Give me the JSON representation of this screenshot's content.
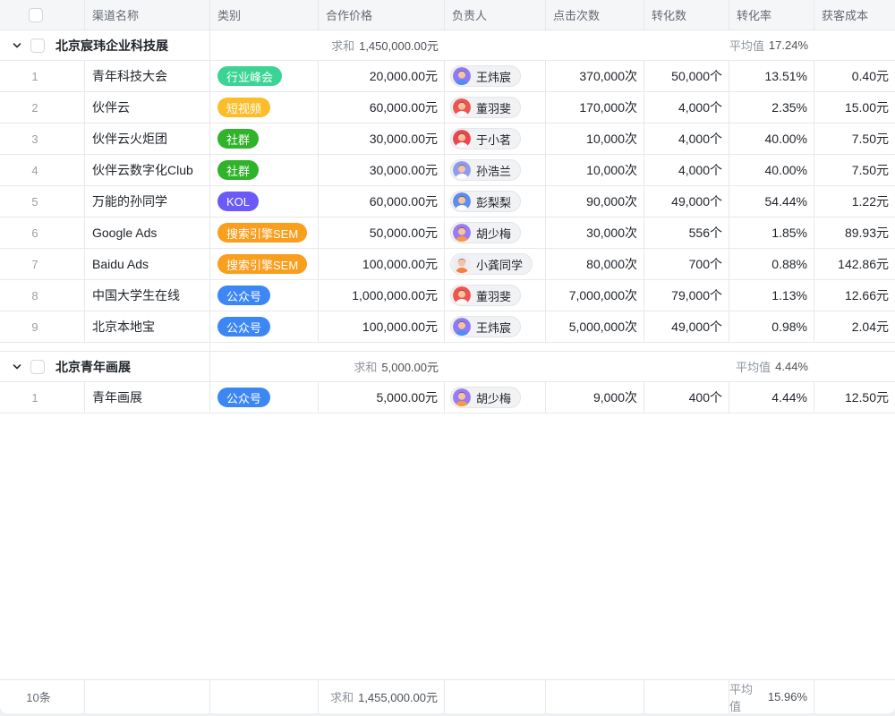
{
  "columns": {
    "name": "渠道名称",
    "category": "类别",
    "price": "合作价格",
    "owner": "负责人",
    "clicks": "点击次数",
    "conversions": "转化数",
    "rate": "转化率",
    "cost": "获客成本"
  },
  "badge_colors": {
    "行业峰会": "#3CD495",
    "短视频": "#FBBD2B",
    "社群": "#2FB32B",
    "KOL": "#6A5AF9",
    "搜索引擎SEM": "#FA9E1E",
    "公众号": "#3D87F5"
  },
  "groups": [
    {
      "title": "北京宸玮企业科技展",
      "sum_label": "求和",
      "sum_value": "1,450,000.00元",
      "avg_label": "平均值",
      "avg_value": "17.24%",
      "rows": [
        {
          "index": "1",
          "name": "青年科技大会",
          "category": "行业峰会",
          "price": "20,000.00元",
          "owner": "王炜宸",
          "avatar_bg": "#8E7BF3",
          "shirt": "#4D8DF6",
          "clicks": "370,000次",
          "conversions": "50,000个",
          "rate": "13.51%",
          "cost": "0.40元"
        },
        {
          "index": "2",
          "name": "伙伴云",
          "category": "短视频",
          "price": "60,000.00元",
          "owner": "董羽斐",
          "avatar_bg": "#F0544F",
          "shirt": "#FDFDFD",
          "clicks": "170,000次",
          "conversions": "4,000个",
          "rate": "2.35%",
          "cost": "15.00元"
        },
        {
          "index": "3",
          "name": "伙伴云火炬团",
          "category": "社群",
          "price": "30,000.00元",
          "owner": "于小茗",
          "avatar_bg": "#E8484E",
          "shirt": "#FDFDFD",
          "clicks": "10,000次",
          "conversions": "4,000个",
          "rate": "40.00%",
          "cost": "7.50元"
        },
        {
          "index": "4",
          "name": "伙伴云数字化Club",
          "category": "社群",
          "price": "30,000.00元",
          "owner": "孙浩兰",
          "avatar_bg": "#8F9BEF",
          "shirt": "#FDFDFD",
          "clicks": "10,000次",
          "conversions": "4,000个",
          "rate": "40.00%",
          "cost": "7.50元"
        },
        {
          "index": "5",
          "name": "万能的孙同学",
          "category": "KOL",
          "price": "60,000.00元",
          "owner": "彭梨梨",
          "avatar_bg": "#5E8DF0",
          "shirt": "#FDFDFD",
          "clicks": "90,000次",
          "conversions": "49,000个",
          "rate": "54.44%",
          "cost": "1.22元"
        },
        {
          "index": "6",
          "name": "Google Ads",
          "category": "搜索引擎SEM",
          "price": "50,000.00元",
          "owner": "胡少梅",
          "avatar_bg": "#9B7BF3",
          "shirt": "#F79B3E",
          "clicks": "30,000次",
          "conversions": "556个",
          "rate": "1.85%",
          "cost": "89.93元"
        },
        {
          "index": "7",
          "name": "Baidu Ads",
          "category": "搜索引擎SEM",
          "price": "100,000.00元",
          "owner": "小龚同学",
          "avatar_bg": "#EFEDF4",
          "shirt": "#F7803E",
          "clicks": "80,000次",
          "conversions": "700个",
          "rate": "0.88%",
          "cost": "142.86元"
        },
        {
          "index": "8",
          "name": "中国大学生在线",
          "category": "公众号",
          "price": "1,000,000.00元",
          "owner": "董羽斐",
          "avatar_bg": "#F0544F",
          "shirt": "#FDFDFD",
          "clicks": "7,000,000次",
          "conversions": "79,000个",
          "rate": "1.13%",
          "cost": "12.66元"
        },
        {
          "index": "9",
          "name": "北京本地宝",
          "category": "公众号",
          "price": "100,000.00元",
          "owner": "王炜宸",
          "avatar_bg": "#8E7BF3",
          "shirt": "#4D8DF6",
          "clicks": "5,000,000次",
          "conversions": "49,000个",
          "rate": "0.98%",
          "cost": "2.04元"
        }
      ]
    },
    {
      "title": "北京青年画展",
      "sum_label": "求和",
      "sum_value": "5,000.00元",
      "avg_label": "平均值",
      "avg_value": "4.44%",
      "rows": [
        {
          "index": "1",
          "name": "青年画展",
          "category": "公众号",
          "price": "5,000.00元",
          "owner": "胡少梅",
          "avatar_bg": "#9B7BF3",
          "shirt": "#F79B3E",
          "clicks": "9,000次",
          "conversions": "400个",
          "rate": "4.44%",
          "cost": "12.50元"
        }
      ]
    }
  ],
  "footer": {
    "count": "10条",
    "sum_label": "求和",
    "sum_value": "1,455,000.00元",
    "avg_label": "平均值",
    "avg_value": "15.96%"
  }
}
